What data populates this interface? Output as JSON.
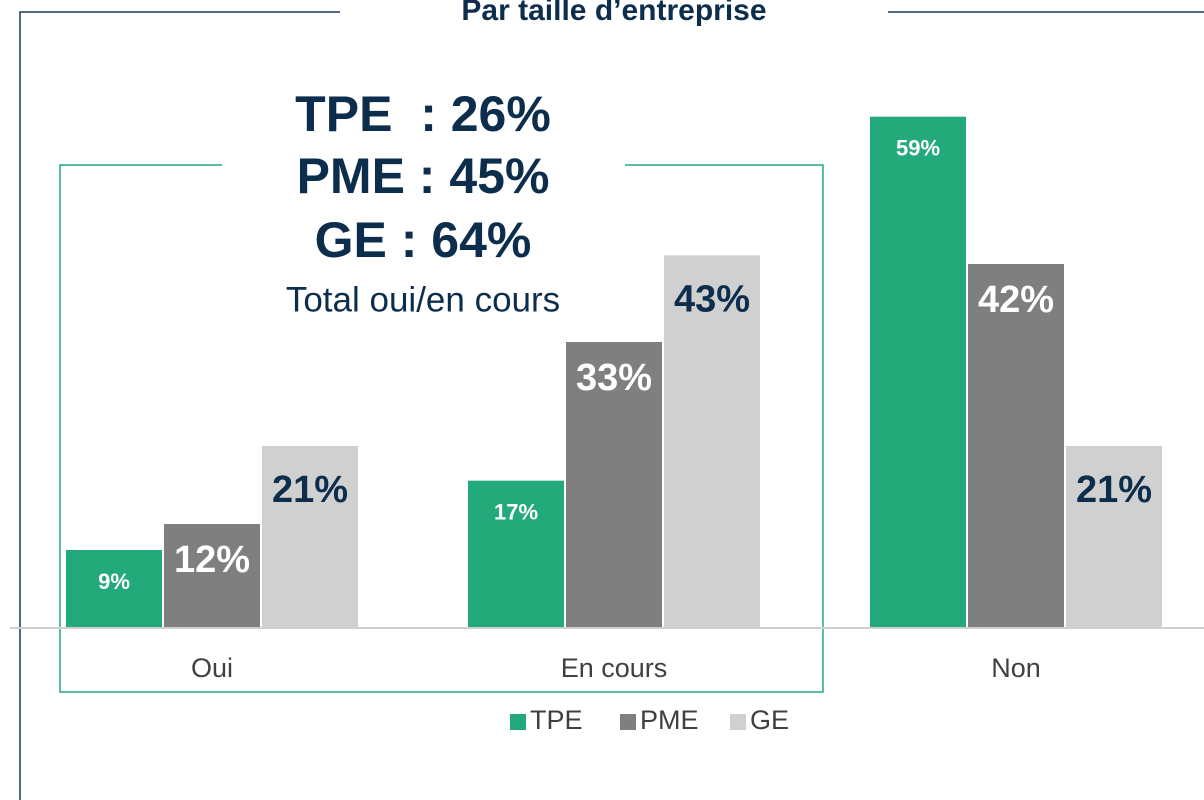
{
  "chart_data": {
    "type": "bar",
    "title": "Par taille d’entreprise",
    "categories": [
      "Oui",
      "En cours",
      "Non"
    ],
    "series": [
      {
        "name": "TPE",
        "color": "#23a97a",
        "values": [
          9,
          17,
          59
        ],
        "value_labels": [
          "9%",
          "17%",
          "59%"
        ]
      },
      {
        "name": "PME",
        "color": "#7f7f7f",
        "values": [
          12,
          33,
          42
        ],
        "value_labels": [
          "12%",
          "33%",
          "42%"
        ]
      },
      {
        "name": "GE",
        "color": "#d0d0d0",
        "values": [
          21,
          43,
          21
        ],
        "value_labels": [
          "21%",
          "43%",
          "21%"
        ]
      }
    ],
    "ylim": [
      0,
      60
    ],
    "legend": "bottom",
    "annotations": [
      "TPE  : 26%",
      "PME : 45%",
      "GE : 64%",
      "Total oui/en cours"
    ]
  }
}
